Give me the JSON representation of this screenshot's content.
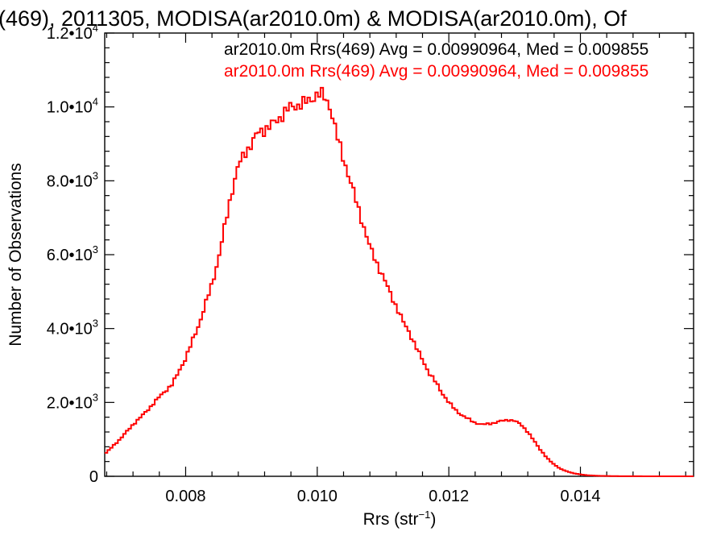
{
  "chart_data": {
    "type": "line",
    "title": "(469), 2011305, MODISA(ar2010.0m) & MODISA(ar2010.0m), Of",
    "xlabel": "Rrs (str",
    "xlabel_sup": "−1",
    "xlabel_close": ")",
    "ylabel": "Number of Observations",
    "xlim": [
      0.00677,
      0.01572
    ],
    "ylim": [
      0,
      12000
    ],
    "x_ticks": [
      {
        "value": 0.008,
        "label": "0.008"
      },
      {
        "value": 0.01,
        "label": "0.010"
      },
      {
        "value": 0.012,
        "label": "0.012"
      },
      {
        "value": 0.014,
        "label": "0.014"
      }
    ],
    "y_ticks": [
      {
        "value": 0,
        "label": "0",
        "exp": ""
      },
      {
        "value": 2000,
        "label": "2.0•10",
        "exp": "3"
      },
      {
        "value": 4000,
        "label": "4.0•10",
        "exp": "3"
      },
      {
        "value": 6000,
        "label": "6.0•10",
        "exp": "3"
      },
      {
        "value": 8000,
        "label": "8.0•10",
        "exp": "3"
      },
      {
        "value": 10000,
        "label": "1.0•10",
        "exp": "4"
      },
      {
        "value": 12000,
        "label": "1.2•10",
        "exp": "4"
      }
    ],
    "legend": [
      {
        "text": "ar2010.0m Rrs(469) Avg = 0.00990964, Med = 0.009855",
        "color": "#000000"
      },
      {
        "text": "ar2010.0m Rrs(469) Avg = 0.00990964, Med = 0.009855",
        "color": "#ff0000"
      }
    ],
    "legend_placement": "top-right",
    "series_color": "#ff0000",
    "grid": false,
    "series": [
      {
        "x": [
          0.00677,
          0.007,
          0.0072,
          0.0074,
          0.0076,
          0.0078,
          0.008,
          0.0082,
          0.0084,
          0.0085,
          0.0086,
          0.0087,
          0.0088,
          0.0089,
          0.009,
          0.0091,
          0.0092,
          0.0093,
          0.0094,
          0.0095,
          0.0096,
          0.0097,
          0.0098,
          0.0099,
          0.01,
          0.0101,
          0.0102,
          0.0103,
          0.0104,
          0.0105,
          0.0106,
          0.0107,
          0.0108,
          0.0109,
          0.011,
          0.0111,
          0.0112,
          0.0113,
          0.0114,
          0.0115,
          0.0116,
          0.0117,
          0.0118,
          0.0119,
          0.012,
          0.0121,
          0.0122,
          0.0123,
          0.0124,
          0.0125,
          0.0126,
          0.0127,
          0.0128,
          0.0129,
          0.013,
          0.0131,
          0.0132,
          0.0133,
          0.0134,
          0.0135,
          0.0136,
          0.0137,
          0.0138,
          0.0139,
          0.014,
          0.0141,
          0.0142,
          0.0143,
          0.0144,
          0.0145,
          0.0146,
          0.0148,
          0.015,
          0.0155,
          0.01572
        ],
        "y": [
          600,
          1000,
          1400,
          1750,
          2150,
          2500,
          3200,
          4100,
          5200,
          5900,
          6800,
          7700,
          8400,
          8750,
          9000,
          9300,
          9400,
          9500,
          9650,
          9850,
          10000,
          10050,
          10100,
          10200,
          10350,
          10300,
          10000,
          9200,
          8600,
          8000,
          7400,
          6800,
          6200,
          5800,
          5400,
          5000,
          4600,
          4200,
          3900,
          3500,
          3150,
          2800,
          2550,
          2250,
          2000,
          1800,
          1650,
          1550,
          1450,
          1400,
          1420,
          1450,
          1500,
          1530,
          1500,
          1400,
          1200,
          950,
          700,
          480,
          320,
          200,
          130,
          80,
          50,
          30,
          20,
          12,
          8,
          5,
          3,
          2,
          1,
          0,
          0
        ]
      }
    ]
  }
}
